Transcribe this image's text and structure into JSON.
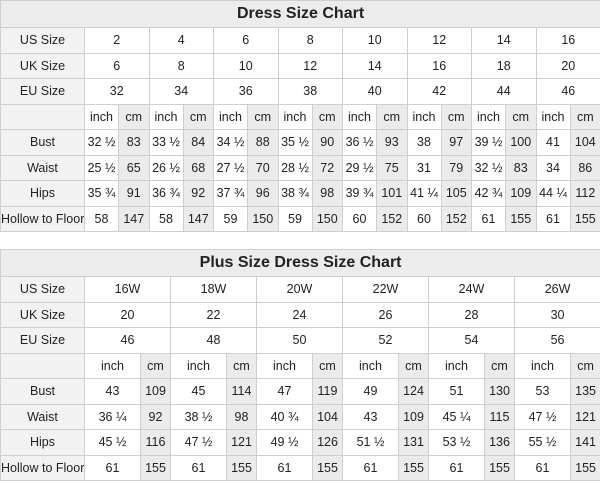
{
  "tables": [
    {
      "title": "Dress Size Chart",
      "size_rows": [
        {
          "label": "US Size",
          "values": [
            2,
            4,
            6,
            8,
            10,
            12,
            14,
            16
          ]
        },
        {
          "label": "UK Size",
          "values": [
            6,
            8,
            10,
            12,
            14,
            16,
            18,
            20
          ]
        },
        {
          "label": "EU Size",
          "values": [
            32,
            34,
            36,
            38,
            40,
            42,
            44,
            46
          ]
        }
      ],
      "units": [
        "inch",
        "cm"
      ],
      "measure_rows": [
        {
          "label": "Bust",
          "values": [
            "32 ½",
            83,
            "33 ½",
            84,
            "34 ½",
            88,
            "35 ½",
            90,
            "36 ½",
            93,
            38,
            97,
            "39 ½",
            100,
            41,
            104
          ]
        },
        {
          "label": "Waist",
          "values": [
            "25 ½",
            65,
            "26 ½",
            68,
            "27 ½",
            70,
            "28 ½",
            72,
            "29 ½",
            75,
            31,
            79,
            "32 ½",
            83,
            34,
            86
          ]
        },
        {
          "label": "Hips",
          "values": [
            "35 ¾",
            91,
            "36 ¾",
            92,
            "37 ¾",
            96,
            "38 ¾",
            98,
            "39 ¾",
            101,
            "41 ¼",
            105,
            "42 ¾",
            109,
            "44 ¼",
            112
          ]
        },
        {
          "label": "Hollow to Floor",
          "values": [
            58,
            147,
            58,
            147,
            59,
            150,
            59,
            150,
            60,
            152,
            60,
            152,
            61,
            155,
            61,
            155
          ]
        }
      ]
    },
    {
      "title": "Plus Size Dress Size Chart",
      "size_rows": [
        {
          "label": "US Size",
          "values": [
            "16W",
            "18W",
            "20W",
            "22W",
            "24W",
            "26W"
          ]
        },
        {
          "label": "UK Size",
          "values": [
            20,
            22,
            24,
            26,
            28,
            30
          ]
        },
        {
          "label": "EU Size",
          "values": [
            46,
            48,
            50,
            52,
            54,
            56
          ]
        }
      ],
      "units": [
        "inch",
        "cm"
      ],
      "measure_rows": [
        {
          "label": "Bust",
          "values": [
            43,
            109,
            45,
            114,
            47,
            119,
            49,
            124,
            51,
            130,
            53,
            135
          ]
        },
        {
          "label": "Waist",
          "values": [
            "36 ¼",
            92,
            "38 ½",
            98,
            "40 ¾",
            104,
            43,
            109,
            "45 ¼",
            115,
            "47 ½",
            121
          ]
        },
        {
          "label": "Hips",
          "values": [
            "45 ½",
            116,
            "47 ½",
            121,
            "49 ½",
            126,
            "51 ½",
            131,
            "53 ½",
            136,
            "55 ½",
            141
          ]
        },
        {
          "label": "Hollow to Floor",
          "values": [
            61,
            155,
            61,
            155,
            61,
            155,
            61,
            155,
            61,
            155,
            61,
            155
          ]
        }
      ]
    }
  ]
}
